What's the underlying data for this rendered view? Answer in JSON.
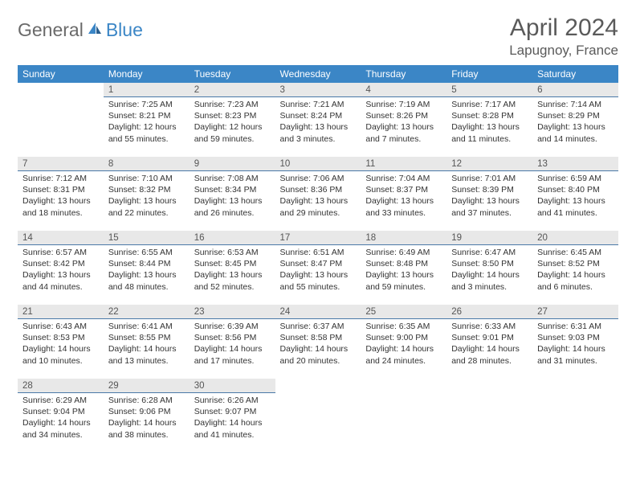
{
  "logo": {
    "part1": "General",
    "part2": "Blue"
  },
  "title": "April 2024",
  "subtitle": "Lapugnoy, France",
  "colors": {
    "header_bg": "#3b86c6",
    "header_text": "#ffffff",
    "daynum_bg": "#e8e8e8",
    "daynum_border": "#4a79a8",
    "text": "#333333",
    "title_color": "#5a5a5a"
  },
  "fonts": {
    "title_size": 30,
    "subtitle_size": 17,
    "dayheader_size": 12,
    "cell_size": 10.5
  },
  "day_headers": [
    "Sunday",
    "Monday",
    "Tuesday",
    "Wednesday",
    "Thursday",
    "Friday",
    "Saturday"
  ],
  "weeks": [
    [
      null,
      {
        "n": "1",
        "sr": "7:25 AM",
        "ss": "8:21 PM",
        "dl": "12 hours and 55 minutes."
      },
      {
        "n": "2",
        "sr": "7:23 AM",
        "ss": "8:23 PM",
        "dl": "12 hours and 59 minutes."
      },
      {
        "n": "3",
        "sr": "7:21 AM",
        "ss": "8:24 PM",
        "dl": "13 hours and 3 minutes."
      },
      {
        "n": "4",
        "sr": "7:19 AM",
        "ss": "8:26 PM",
        "dl": "13 hours and 7 minutes."
      },
      {
        "n": "5",
        "sr": "7:17 AM",
        "ss": "8:28 PM",
        "dl": "13 hours and 11 minutes."
      },
      {
        "n": "6",
        "sr": "7:14 AM",
        "ss": "8:29 PM",
        "dl": "13 hours and 14 minutes."
      }
    ],
    [
      {
        "n": "7",
        "sr": "7:12 AM",
        "ss": "8:31 PM",
        "dl": "13 hours and 18 minutes."
      },
      {
        "n": "8",
        "sr": "7:10 AM",
        "ss": "8:32 PM",
        "dl": "13 hours and 22 minutes."
      },
      {
        "n": "9",
        "sr": "7:08 AM",
        "ss": "8:34 PM",
        "dl": "13 hours and 26 minutes."
      },
      {
        "n": "10",
        "sr": "7:06 AM",
        "ss": "8:36 PM",
        "dl": "13 hours and 29 minutes."
      },
      {
        "n": "11",
        "sr": "7:04 AM",
        "ss": "8:37 PM",
        "dl": "13 hours and 33 minutes."
      },
      {
        "n": "12",
        "sr": "7:01 AM",
        "ss": "8:39 PM",
        "dl": "13 hours and 37 minutes."
      },
      {
        "n": "13",
        "sr": "6:59 AM",
        "ss": "8:40 PM",
        "dl": "13 hours and 41 minutes."
      }
    ],
    [
      {
        "n": "14",
        "sr": "6:57 AM",
        "ss": "8:42 PM",
        "dl": "13 hours and 44 minutes."
      },
      {
        "n": "15",
        "sr": "6:55 AM",
        "ss": "8:44 PM",
        "dl": "13 hours and 48 minutes."
      },
      {
        "n": "16",
        "sr": "6:53 AM",
        "ss": "8:45 PM",
        "dl": "13 hours and 52 minutes."
      },
      {
        "n": "17",
        "sr": "6:51 AM",
        "ss": "8:47 PM",
        "dl": "13 hours and 55 minutes."
      },
      {
        "n": "18",
        "sr": "6:49 AM",
        "ss": "8:48 PM",
        "dl": "13 hours and 59 minutes."
      },
      {
        "n": "19",
        "sr": "6:47 AM",
        "ss": "8:50 PM",
        "dl": "14 hours and 3 minutes."
      },
      {
        "n": "20",
        "sr": "6:45 AM",
        "ss": "8:52 PM",
        "dl": "14 hours and 6 minutes."
      }
    ],
    [
      {
        "n": "21",
        "sr": "6:43 AM",
        "ss": "8:53 PM",
        "dl": "14 hours and 10 minutes."
      },
      {
        "n": "22",
        "sr": "6:41 AM",
        "ss": "8:55 PM",
        "dl": "14 hours and 13 minutes."
      },
      {
        "n": "23",
        "sr": "6:39 AM",
        "ss": "8:56 PM",
        "dl": "14 hours and 17 minutes."
      },
      {
        "n": "24",
        "sr": "6:37 AM",
        "ss": "8:58 PM",
        "dl": "14 hours and 20 minutes."
      },
      {
        "n": "25",
        "sr": "6:35 AM",
        "ss": "9:00 PM",
        "dl": "14 hours and 24 minutes."
      },
      {
        "n": "26",
        "sr": "6:33 AM",
        "ss": "9:01 PM",
        "dl": "14 hours and 28 minutes."
      },
      {
        "n": "27",
        "sr": "6:31 AM",
        "ss": "9:03 PM",
        "dl": "14 hours and 31 minutes."
      }
    ],
    [
      {
        "n": "28",
        "sr": "6:29 AM",
        "ss": "9:04 PM",
        "dl": "14 hours and 34 minutes."
      },
      {
        "n": "29",
        "sr": "6:28 AM",
        "ss": "9:06 PM",
        "dl": "14 hours and 38 minutes."
      },
      {
        "n": "30",
        "sr": "6:26 AM",
        "ss": "9:07 PM",
        "dl": "14 hours and 41 minutes."
      },
      null,
      null,
      null,
      null
    ]
  ],
  "labels": {
    "sunrise": "Sunrise:",
    "sunset": "Sunset:",
    "daylight": "Daylight:"
  }
}
